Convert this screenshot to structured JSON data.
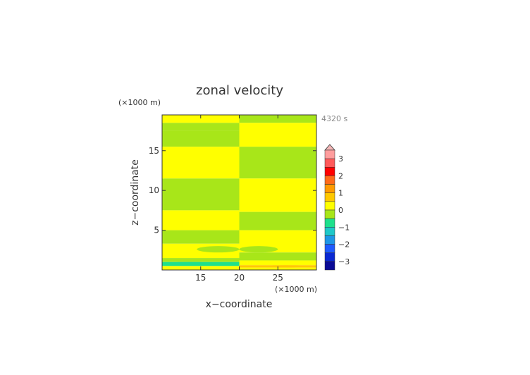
{
  "chart_data": {
    "type": "heatmap",
    "title": "zonal velocity",
    "xlabel": "x−coordinate",
    "ylabel": "z−coordinate",
    "x_unit_label": "(×1000 m)",
    "y_unit_label": "(×1000 m)",
    "time_label": "4320 s",
    "xlim": [
      10,
      30
    ],
    "ylim": [
      0,
      19.5
    ],
    "xticks": [
      15,
      20,
      25
    ],
    "yticks": [
      5,
      10,
      15
    ],
    "colorbar": {
      "tick_values": [
        3,
        2,
        1,
        0,
        -1,
        -2,
        -3
      ],
      "levels": [
        {
          "lo": 3.5,
          "hi": 4.0,
          "color": "#f4b6b6",
          "extend_triangle": true
        },
        {
          "lo": 3.0,
          "hi": 3.5,
          "color": "#ff9d9d"
        },
        {
          "lo": 2.5,
          "hi": 3.0,
          "color": "#ff5a5a"
        },
        {
          "lo": 2.0,
          "hi": 2.5,
          "color": "#ff0000"
        },
        {
          "lo": 1.5,
          "hi": 2.0,
          "color": "#ff6a1a"
        },
        {
          "lo": 1.0,
          "hi": 1.5,
          "color": "#ff9a00"
        },
        {
          "lo": 0.5,
          "hi": 1.0,
          "color": "#ffc800"
        },
        {
          "lo": 0.0,
          "hi": 0.5,
          "color": "#ffff00"
        },
        {
          "lo": -0.5,
          "hi": 0.0,
          "color": "#a8e619"
        },
        {
          "lo": -1.0,
          "hi": -0.5,
          "color": "#1ee08c"
        },
        {
          "lo": -1.5,
          "hi": -1.0,
          "color": "#1ec8c8"
        },
        {
          "lo": -2.0,
          "hi": -1.5,
          "color": "#1e96e6"
        },
        {
          "lo": -2.5,
          "hi": -2.0,
          "color": "#1e5aff"
        },
        {
          "lo": -3.0,
          "hi": -2.5,
          "color": "#0a28d2"
        },
        {
          "lo": -3.5,
          "hi": -3.0,
          "color": "#0a0a96"
        }
      ]
    },
    "bands": [
      {
        "x0": 10,
        "x1": 20,
        "z0": 18.5,
        "z1": 19.5,
        "value": 0.25
      },
      {
        "x0": 10,
        "x1": 20,
        "z0": 17.5,
        "z1": 18.5,
        "value": -0.25
      },
      {
        "x0": 10,
        "x1": 20,
        "z0": 15.5,
        "z1": 17.5,
        "value": -0.25
      },
      {
        "x0": 10,
        "x1": 20,
        "z0": 11.5,
        "z1": 15.5,
        "value": 0.25
      },
      {
        "x0": 10,
        "x1": 20,
        "z0": 7.5,
        "z1": 11.5,
        "value": -0.25
      },
      {
        "x0": 10,
        "x1": 20,
        "z0": 5.0,
        "z1": 7.5,
        "value": 0.25
      },
      {
        "x0": 10,
        "x1": 20,
        "z0": 3.3,
        "z1": 5.0,
        "value": -0.25
      },
      {
        "x0": 10,
        "x1": 20,
        "z0": 1.5,
        "z1": 3.3,
        "value": 0.25
      },
      {
        "x0": 10,
        "x1": 20,
        "z0": 1.0,
        "z1": 1.5,
        "value": -0.25
      },
      {
        "x0": 10,
        "x1": 20,
        "z0": 0.5,
        "z1": 1.0,
        "value": -0.75
      },
      {
        "x0": 10,
        "x1": 20,
        "z0": 0.0,
        "z1": 0.5,
        "value": 0.25
      },
      {
        "x0": 20,
        "x1": 30,
        "z0": 18.5,
        "z1": 19.5,
        "value": -0.25
      },
      {
        "x0": 20,
        "x1": 30,
        "z0": 15.5,
        "z1": 18.5,
        "value": 0.25
      },
      {
        "x0": 20,
        "x1": 30,
        "z0": 11.5,
        "z1": 15.5,
        "value": -0.25
      },
      {
        "x0": 20,
        "x1": 30,
        "z0": 7.3,
        "z1": 11.5,
        "value": 0.25
      },
      {
        "x0": 20,
        "x1": 30,
        "z0": 5.0,
        "z1": 7.3,
        "value": -0.25
      },
      {
        "x0": 20,
        "x1": 30,
        "z0": 2.2,
        "z1": 5.0,
        "value": 0.25
      },
      {
        "x0": 20,
        "x1": 30,
        "z0": 1.2,
        "z1": 2.2,
        "value": -0.25
      },
      {
        "x0": 20,
        "x1": 30,
        "z0": 0.6,
        "z1": 1.2,
        "value": 0.25
      },
      {
        "x0": 20,
        "x1": 30,
        "z0": 0.3,
        "z1": 0.6,
        "value": 0.75
      },
      {
        "x0": 20,
        "x1": 30,
        "z0": 0.0,
        "z1": 0.3,
        "value": 0.25
      }
    ],
    "features": [
      {
        "shape": "lens",
        "x0": 14.5,
        "x1": 20,
        "z0": 2.2,
        "z1": 3.0,
        "value": -0.25
      },
      {
        "shape": "lens",
        "x0": 20,
        "x1": 25.0,
        "z0": 2.2,
        "z1": 3.0,
        "value": -0.25
      },
      {
        "shape": "lens",
        "x0": 10,
        "x1": 17.0,
        "z0": 0.6,
        "z1": 1.0,
        "value": -0.75
      },
      {
        "shape": "lens",
        "x0": 22.0,
        "x1": 30,
        "z0": 0.3,
        "z1": 0.6,
        "value": 0.75
      }
    ]
  }
}
